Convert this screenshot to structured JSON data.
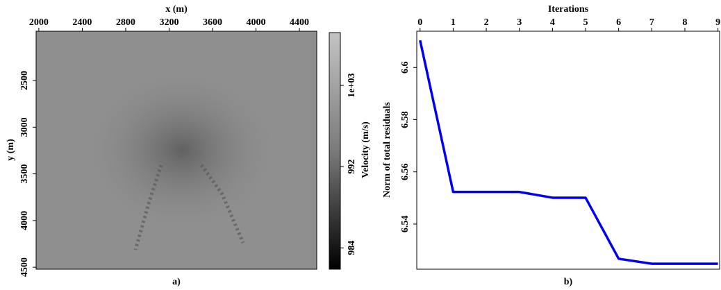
{
  "chart_data": [
    {
      "type": "image",
      "caption": "a)",
      "xlabel": "x (m)",
      "ylabel": "y (m)",
      "xlim": [
        1975,
        4560
      ],
      "ylim": [
        1972,
        4521
      ],
      "y_inverted": true,
      "xticks": [
        2000,
        2400,
        2800,
        3200,
        3600,
        4000,
        4400
      ],
      "yticks": [
        2500,
        3000,
        3500,
        4000,
        4500
      ],
      "colorbar": {
        "label": "Velocity (m/s)",
        "clim": [
          981.9,
          1005.2
        ],
        "colormap": "gray",
        "ticks": [
          984,
          992,
          {
            "value": 1000,
            "label": "1e+03"
          }
        ]
      }
    },
    {
      "type": "line",
      "caption": "b)",
      "xlabel": "Iterations",
      "ylabel": "Norm of total residuals",
      "x": [
        0,
        1,
        2,
        3,
        4,
        5,
        6,
        7,
        8,
        9
      ],
      "series": [
        {
          "color": "#0000ee",
          "values": [
            6.6104,
            6.5523,
            6.5523,
            6.5523,
            6.5501,
            6.5501,
            6.5267,
            6.5248,
            6.5248,
            6.5248
          ]
        }
      ],
      "xlim": [
        -0.1,
        9.05
      ],
      "ylim": [
        6.5227,
        6.6139
      ],
      "xticks": [
        0,
        1,
        2,
        3,
        4,
        5,
        6,
        7,
        8,
        9
      ],
      "yticks": [
        6.54,
        6.56,
        6.58,
        6.6
      ]
    }
  ]
}
